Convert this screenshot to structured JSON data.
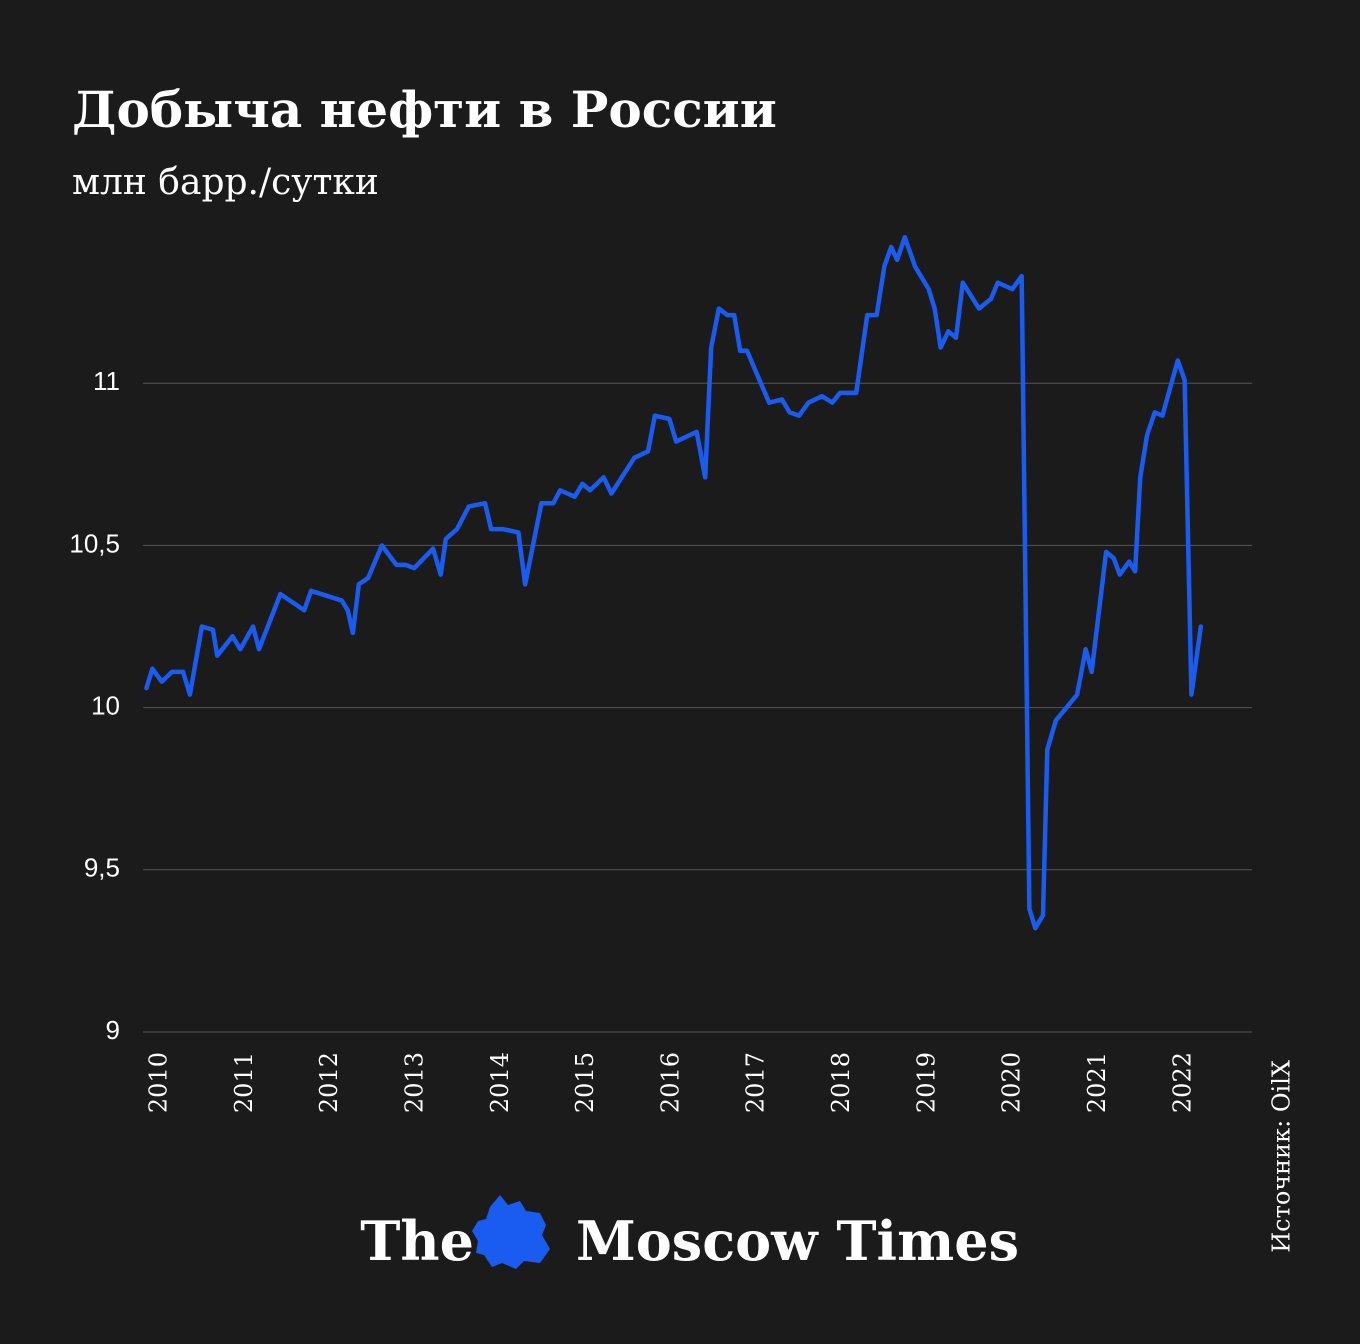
{
  "chart_data": {
    "type": "line",
    "title": "Добыча нефти в России",
    "subtitle": "млн барр./сутки",
    "source": "Источник: OilX",
    "logo": {
      "left": "The",
      "right": "Moscow Times"
    },
    "color": "#1a5cf0",
    "grid": true,
    "xlim": [
      2009.8,
      2022.8
    ],
    "xticks": [
      2010,
      2011,
      2012,
      2013,
      2014,
      2015,
      2016,
      2017,
      2018,
      2019,
      2020,
      2021,
      2022
    ],
    "ylim": [
      9,
      11.5
    ],
    "yticks": [
      9,
      {
        "value": 9.5,
        "label": "9,5"
      },
      10,
      {
        "value": 10.5,
        "label": "10,5"
      },
      11
    ],
    "x": [
      2009.84,
      2009.91,
      2010.02,
      2010.14,
      2010.27,
      2010.35,
      2010.49,
      2010.62,
      2010.67,
      2010.85,
      2010.94,
      2011.09,
      2011.16,
      2011.41,
      2011.69,
      2011.77,
      2012.13,
      2012.2,
      2012.26,
      2012.33,
      2012.44,
      2012.6,
      2012.77,
      2012.88,
      2012.98,
      2013.2,
      2013.29,
      2013.35,
      2013.48,
      2013.62,
      2013.81,
      2013.88,
      2014.02,
      2014.2,
      2014.28,
      2014.47,
      2014.61,
      2014.69,
      2014.86,
      2014.95,
      2015.04,
      2015.2,
      2015.29,
      2015.56,
      2015.72,
      2015.8,
      2015.97,
      2016.05,
      2016.29,
      2016.39,
      2016.46,
      2016.55,
      2016.65,
      2016.73,
      2016.8,
      2016.88,
      2017.14,
      2017.29,
      2017.38,
      2017.49,
      2017.6,
      2017.76,
      2017.88,
      2017.97,
      2018.16,
      2018.29,
      2018.4,
      2018.49,
      2018.57,
      2018.64,
      2018.73,
      2018.85,
      2019.01,
      2019.08,
      2019.15,
      2019.24,
      2019.33,
      2019.41,
      2019.6,
      2019.74,
      2019.82,
      2019.99,
      2020.1,
      2020.19,
      2020.26,
      2020.35,
      2020.4,
      2020.5,
      2020.75,
      2020.85,
      2020.92,
      2021.09,
      2021.18,
      2021.25,
      2021.36,
      2021.43,
      2021.49,
      2021.57,
      2021.66,
      2021.75,
      2021.93,
      2022.01,
      2022.09,
      2022.2
    ],
    "values": [
      10.06,
      10.12,
      10.08,
      10.11,
      10.11,
      10.04,
      10.25,
      10.24,
      10.16,
      10.22,
      10.18,
      10.25,
      10.18,
      10.35,
      10.3,
      10.36,
      10.33,
      10.3,
      10.23,
      10.38,
      10.4,
      10.5,
      10.44,
      10.44,
      10.43,
      10.49,
      10.41,
      10.52,
      10.55,
      10.62,
      10.63,
      10.55,
      10.55,
      10.54,
      10.38,
      10.63,
      10.63,
      10.67,
      10.65,
      10.69,
      10.67,
      10.71,
      10.66,
      10.77,
      10.79,
      10.9,
      10.89,
      10.82,
      10.85,
      10.71,
      11.11,
      11.23,
      11.21,
      11.21,
      11.1,
      11.1,
      10.94,
      10.95,
      10.91,
      10.9,
      10.94,
      10.96,
      10.94,
      10.97,
      10.97,
      11.21,
      11.21,
      11.36,
      11.42,
      11.38,
      11.45,
      11.36,
      11.29,
      11.23,
      11.11,
      11.16,
      11.14,
      11.31,
      11.23,
      11.26,
      11.31,
      11.29,
      11.33,
      9.38,
      9.32,
      9.36,
      9.87,
      9.96,
      10.04,
      10.18,
      10.11,
      10.48,
      10.46,
      10.41,
      10.45,
      10.42,
      10.71,
      10.84,
      10.91,
      10.9,
      11.07,
      11.01,
      10.04,
      10.25
    ]
  }
}
